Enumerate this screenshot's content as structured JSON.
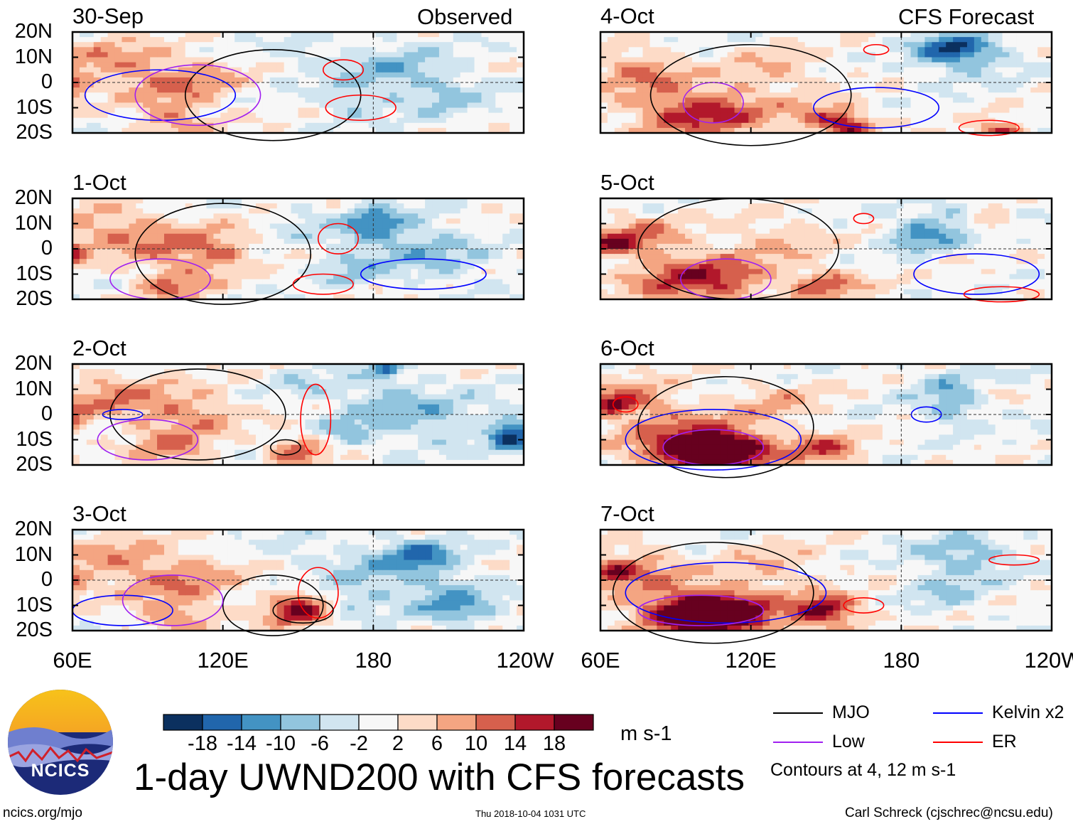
{
  "header": {
    "observed": "Observed",
    "forecast": "CFS Forecast"
  },
  "chart_data": {
    "type": "heatmap",
    "title": "1-day UWND200 with CFS forecasts",
    "units": "m s-1",
    "panels": [
      {
        "date": "30-Sep",
        "column": "Observed"
      },
      {
        "date": "1-Oct",
        "column": "Observed"
      },
      {
        "date": "2-Oct",
        "column": "Observed"
      },
      {
        "date": "3-Oct",
        "column": "Observed"
      },
      {
        "date": "4-Oct",
        "column": "CFS Forecast"
      },
      {
        "date": "5-Oct",
        "column": "CFS Forecast"
      },
      {
        "date": "6-Oct",
        "column": "CFS Forecast"
      },
      {
        "date": "7-Oct",
        "column": "CFS Forecast"
      }
    ],
    "y_ticks": [
      "20N",
      "10N",
      "0",
      "10S",
      "20S"
    ],
    "x_ticks": [
      "60E",
      "120E",
      "180",
      "120W"
    ],
    "xlim_lon": [
      60,
      240
    ],
    "ylim_lat": [
      -20,
      20
    ],
    "colorbar": {
      "levels": [
        "-18",
        "-14",
        "-10",
        "-6",
        "-2",
        "2",
        "6",
        "10",
        "14",
        "18"
      ],
      "colors": [
        "#0b305f",
        "#2166ac",
        "#4393c3",
        "#92c5de",
        "#d1e5f0",
        "#f7f7f7",
        "#fddbc7",
        "#f4a582",
        "#d6604d",
        "#b2182b",
        "#67001f"
      ]
    },
    "contour_legend": [
      {
        "label": "MJO",
        "color": "#000000"
      },
      {
        "label": "Kelvin x2",
        "color": "#0000ff"
      },
      {
        "label": "Low",
        "color": "#a020f0"
      },
      {
        "label": "ER",
        "color": "#ff0000"
      }
    ],
    "contour_note": "Contours at 4, 12 m s-1"
  },
  "footer": {
    "logo_text": "NCICS",
    "url": "ncics.org/mjo",
    "timestamp": "Thu 2018-10-04 1031 UTC",
    "author": "Carl Schreck (cjschrec@ncsu.edu)"
  }
}
